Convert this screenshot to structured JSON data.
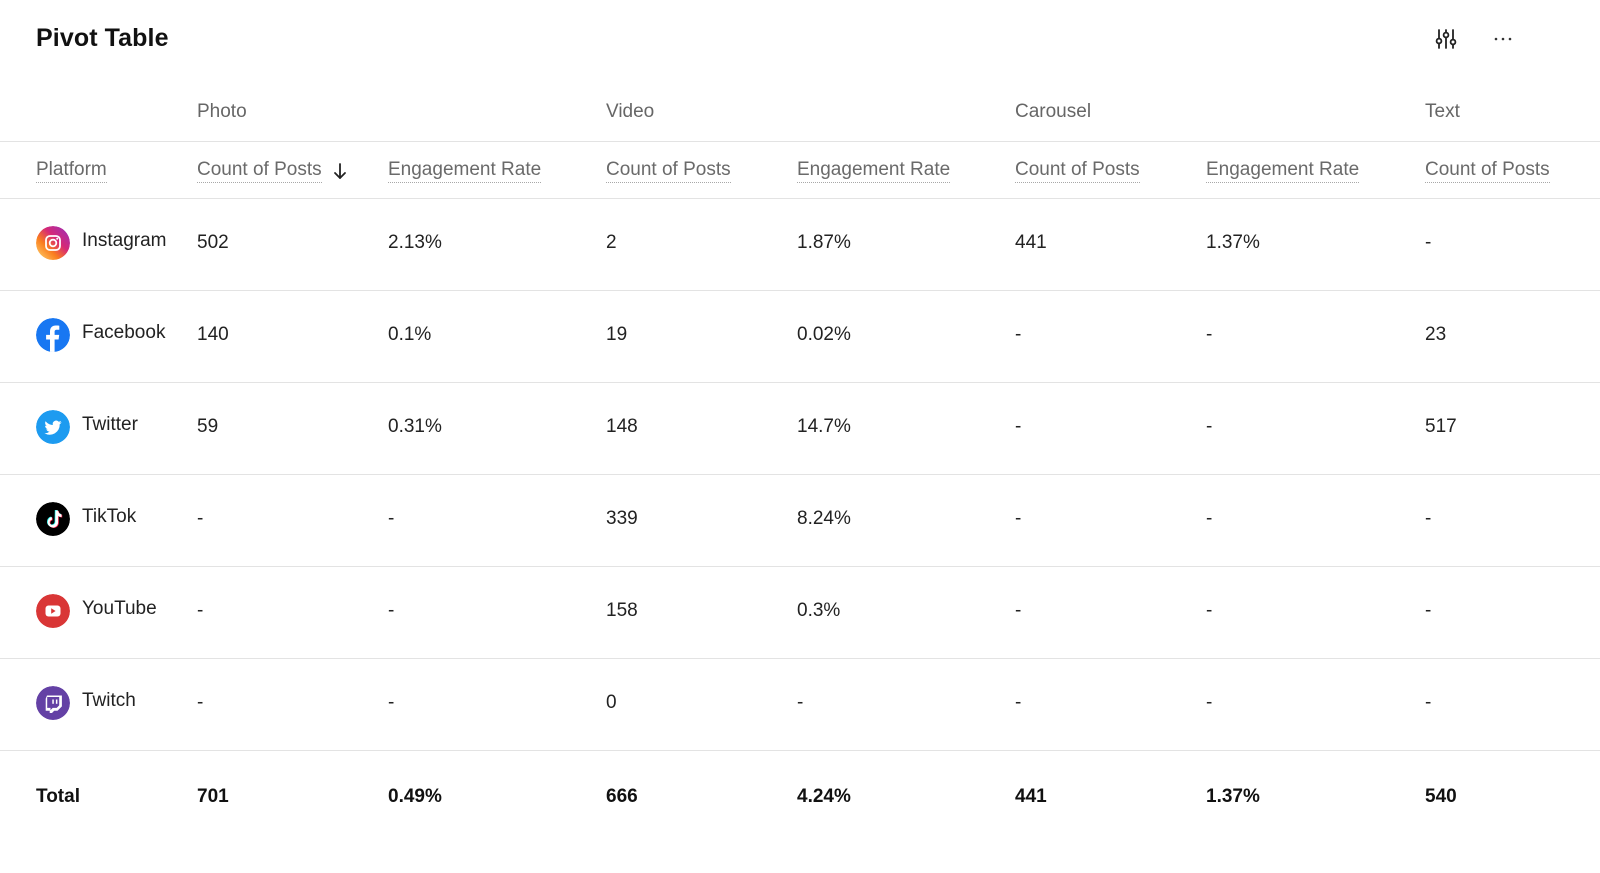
{
  "header": {
    "title": "Pivot Table",
    "filter_icon": "sliders-icon",
    "more_icon": "more-horizontal-icon"
  },
  "groups": [
    "Photo",
    "Video",
    "Carousel",
    "Text"
  ],
  "columns": [
    "Platform",
    "Count of Posts",
    "Engagement Rate",
    "Count of Posts",
    "Engagement Rate",
    "Count of Posts",
    "Engagement Rate",
    "Count of Posts"
  ],
  "sort": {
    "column": "Count of Posts",
    "direction": "descending",
    "icon": "arrow-down-icon"
  },
  "rows": [
    {
      "platform": "Instagram",
      "icon": "instagram-icon",
      "values": [
        "502",
        "2.13%",
        "2",
        "1.87%",
        "441",
        "1.37%",
        "-"
      ]
    },
    {
      "platform": "Facebook",
      "icon": "facebook-icon",
      "values": [
        "140",
        "0.1%",
        "19",
        "0.02%",
        "-",
        "-",
        "23"
      ]
    },
    {
      "platform": "Twitter",
      "icon": "twitter-icon",
      "values": [
        "59",
        "0.31%",
        "148",
        "14.7%",
        "-",
        "-",
        "517"
      ]
    },
    {
      "platform": "TikTok",
      "icon": "tiktok-icon",
      "values": [
        "-",
        "-",
        "339",
        "8.24%",
        "-",
        "-",
        "-"
      ]
    },
    {
      "platform": "YouTube",
      "icon": "youtube-icon",
      "values": [
        "-",
        "-",
        "158",
        "0.3%",
        "-",
        "-",
        "-"
      ]
    },
    {
      "platform": "Twitch",
      "icon": "twitch-icon",
      "values": [
        "-",
        "-",
        "0",
        "-",
        "-",
        "-",
        "-"
      ]
    }
  ],
  "total": {
    "label": "Total",
    "values": [
      "701",
      "0.49%",
      "666",
      "4.24%",
      "441",
      "1.37%",
      "540"
    ]
  },
  "colors": {
    "instagram": "#E1306C",
    "facebook": "#1877F2",
    "twitter": "#1D9BF0",
    "tiktok": "#000000",
    "youtube": "#E53935",
    "twitch": "#6441A5"
  }
}
